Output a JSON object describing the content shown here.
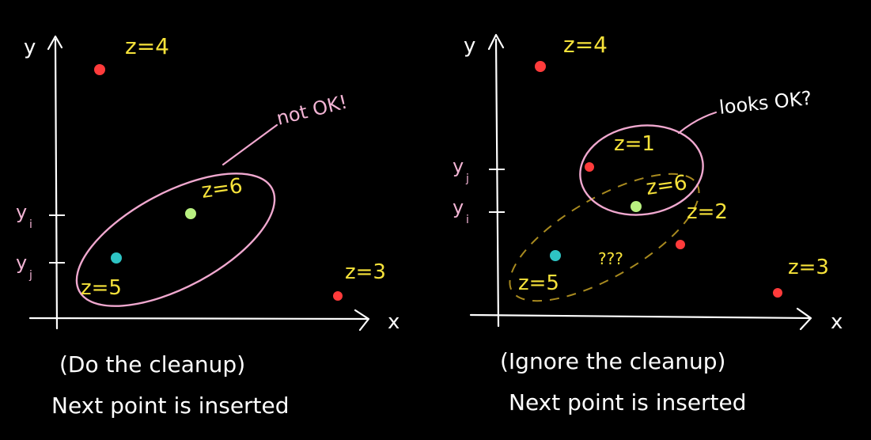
{
  "colors": {
    "background": "#000000",
    "axis": "#ffffff",
    "ellipse": "#f0a8cf",
    "dashed_ellipse": "#a88a1f",
    "label_yellow": "#f6e23a",
    "label_pink": "#f2b4d4",
    "point_red": "#ff3b3b",
    "point_cyan": "#2ec4c4",
    "point_green": "#b8f080"
  },
  "left": {
    "axis_y": "y",
    "axis_x": "x",
    "tick_yi": "y",
    "tick_yi_sub": "i",
    "tick_yj": "y",
    "tick_yj_sub": "j",
    "label_z4": "z=4",
    "label_z5": "z=5",
    "label_z6": "z=6",
    "label_z3": "z=3",
    "callout": "not OK!",
    "caption_1": "(Do the cleanup)",
    "caption_2": "Next point is inserted"
  },
  "right": {
    "axis_y": "y",
    "axis_x": "x",
    "tick_yj": "y",
    "tick_yj_sub": "j",
    "tick_yi": "y",
    "tick_yi_sub": "i",
    "label_z4": "z=4",
    "label_z1": "z=1",
    "label_z6": "z=6",
    "label_z2": "z=2",
    "label_z5": "z=5",
    "label_z3": "z=3",
    "question": "???",
    "callout": "looks OK?",
    "caption_1": "(Ignore the cleanup)",
    "caption_2": "Next point is inserted"
  }
}
